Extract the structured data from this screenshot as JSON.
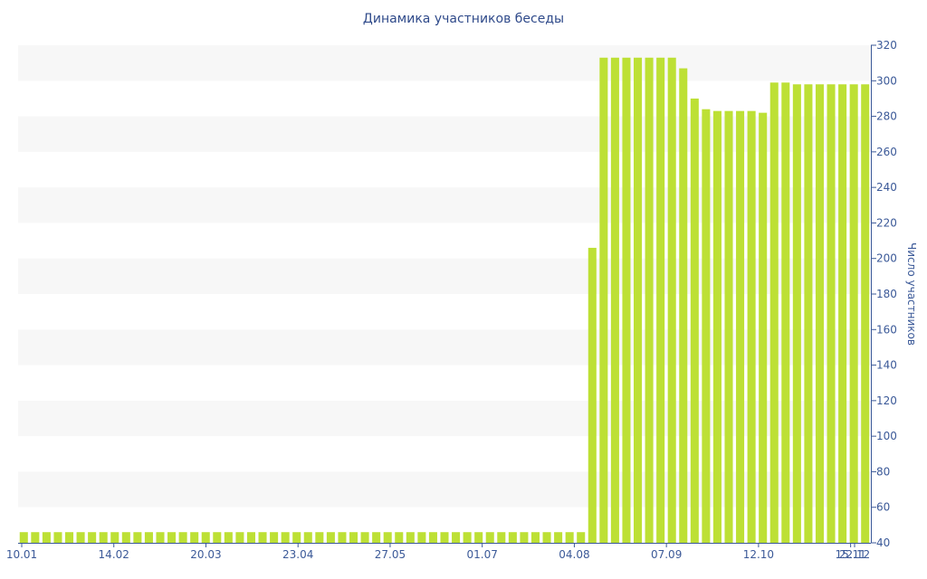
{
  "chart_data": {
    "type": "bar",
    "title": "Динамика участников беседы",
    "xlabel": "",
    "ylabel": "Число участников",
    "ylim": [
      40,
      320
    ],
    "yticks": [
      40,
      60,
      80,
      100,
      120,
      140,
      160,
      180,
      200,
      220,
      240,
      260,
      280,
      300,
      320
    ],
    "x_tick_labels": [
      "10.01",
      "14.02",
      "20.03",
      "23.04",
      "27.05",
      "01.07",
      "04.08",
      "07.09",
      "12.10",
      "15.11",
      "10.12",
      "16.12",
      "22.12"
    ],
    "bar_color": "#bde035",
    "band_color": "#f7f7f7",
    "axis_color": "#3b5998",
    "grid": "alternating horizontal bands",
    "y_axis_position": "right",
    "series": [
      {
        "values": [
          46,
          46,
          46,
          46,
          46,
          46,
          46,
          46,
          46,
          46,
          46,
          46,
          46,
          46,
          46,
          46,
          46,
          46,
          46,
          46,
          46,
          46,
          46,
          46,
          46,
          46,
          46,
          46,
          46,
          46,
          46,
          46,
          46,
          46,
          46,
          46,
          46,
          46,
          46,
          46,
          46,
          46,
          46,
          46,
          46,
          46,
          46,
          46,
          46,
          46,
          206,
          313,
          313,
          313,
          313,
          313,
          313,
          313,
          307,
          290,
          284,
          283,
          283,
          283,
          283,
          282,
          299,
          299,
          298,
          298,
          298,
          298,
          298,
          298,
          298
        ]
      }
    ]
  }
}
